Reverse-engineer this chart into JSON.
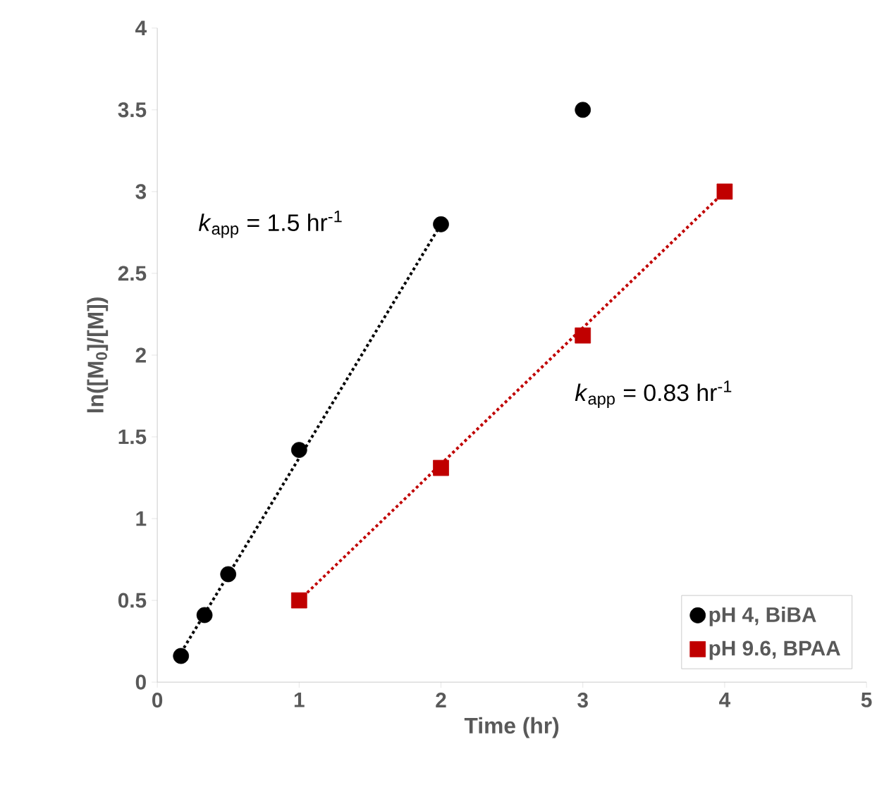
{
  "chart_data": {
    "type": "scatter",
    "xlabel": "Time (hr)",
    "ylabel": "ln([M$_{0}$]/[M])",
    "xlim": [
      0,
      5
    ],
    "ylim": [
      0,
      4
    ],
    "xticks": [
      0,
      1,
      2,
      3,
      4,
      5
    ],
    "yticks": [
      0,
      0.5,
      1,
      1.5,
      2,
      2.5,
      3,
      3.5,
      4
    ],
    "grid": false,
    "legend": "bottom right",
    "series": [
      {
        "type": "line",
        "color": "#000000",
        "x": [
          0.167,
          2
        ],
        "values": [
          0.18,
          2.8
        ],
        "line_style": "dotted",
        "marker": "none"
      },
      {
        "type": "line",
        "color": "#c00000",
        "x": [
          1,
          4
        ],
        "values": [
          0.5,
          3.0
        ],
        "line_style": "dotted",
        "marker": "none"
      },
      {
        "name": "pH 4, BiBA",
        "color": "#000000",
        "marker": "circle",
        "x": [
          0.167,
          0.333,
          0.5,
          1,
          2,
          3
        ],
        "values": [
          0.16,
          0.41,
          0.66,
          1.42,
          2.8,
          3.5
        ]
      },
      {
        "name": "pH 9.6, BPAA",
        "color": "#c00000",
        "marker": "square",
        "x": [
          1,
          2,
          3,
          4
        ],
        "values": [
          0.5,
          1.31,
          2.12,
          3.0
        ]
      }
    ],
    "annotations": [
      "*k*$_{app}$ = 1.5 hr$^{-1}$",
      "*k*$_{app}$ = 0.83 hr$^{-1}$"
    ]
  }
}
